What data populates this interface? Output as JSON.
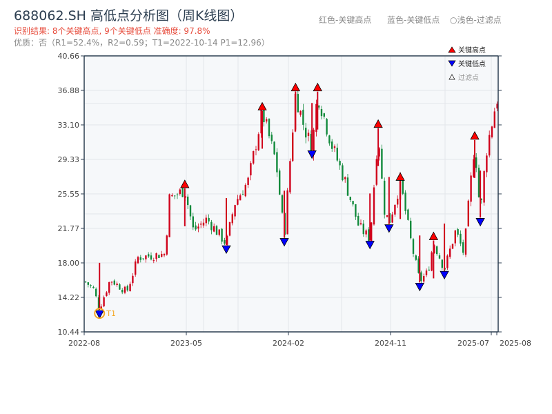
{
  "header": {
    "title": "688062.SH 高低点分析图（周K线图）",
    "result": "识别结果: 8个关键高点, 9个关键低点  准确度: 97.8%",
    "quality": "优质：否（R1=52.4%，R2=0.59；T1=2022-10-14 P1=12.96）",
    "legend_top": [
      "红色-关键高点",
      "蓝色-关键低点",
      "○浅色-过滤点"
    ]
  },
  "chart_data": {
    "type": "candlestick",
    "title": "688062.SH 高低点分析图（周K线图）",
    "interval": "weekly",
    "ylim": [
      10.44,
      40.66
    ],
    "y_ticks": [
      "40.66",
      "36.88",
      "33.10",
      "29.33",
      "25.55",
      "21.77",
      "18.00",
      "14.22",
      "10.44"
    ],
    "x_ticks": [
      "2022-08",
      "2023-05",
      "2024-02",
      "2024-11",
      "2025-07",
      "2025-08"
    ],
    "grid": true,
    "legend_position": "top-right",
    "legend": [
      "关键高点",
      "关键低点",
      "过滤点"
    ],
    "colors": {
      "up": "#d0021b",
      "down": "#128a3c",
      "high_marker": "#ff0000",
      "low_marker": "#0000ff",
      "t1": "#f5a623",
      "plot_bg": "#f6f8fa"
    },
    "price_path": [
      [
        "2022-08-01",
        16.0
      ],
      [
        "2022-08-25",
        15.2
      ],
      [
        "2022-09-11",
        13.0,
        "low"
      ],
      [
        "2022-10-10",
        16.2
      ],
      [
        "2022-11-23",
        14.8
      ],
      [
        "2022-12-23",
        18.6
      ],
      [
        "2023-03-07",
        19.0
      ],
      [
        "2023-03-14",
        25.0
      ],
      [
        "2023-04-27",
        26.0,
        "high"
      ],
      [
        "2023-05-20",
        21.5
      ],
      [
        "2023-06-25",
        22.8
      ],
      [
        "2023-08-16",
        20.1,
        "low"
      ],
      [
        "2023-09-07",
        24.5
      ],
      [
        "2023-10-14",
        27.0
      ],
      [
        "2023-11-20",
        34.5,
        "high"
      ],
      [
        "2023-12-27",
        29.0
      ],
      [
        "2024-01-18",
        20.9,
        "low"
      ],
      [
        "2024-02-02",
        29.0
      ],
      [
        "2024-02-17",
        36.6,
        "high"
      ],
      [
        "2024-03-10",
        33.0
      ],
      [
        "2024-04-01",
        30.5,
        "low"
      ],
      [
        "2024-04-16",
        36.6,
        "high"
      ],
      [
        "2024-05-23",
        31.0
      ],
      [
        "2024-06-28",
        27.0
      ],
      [
        "2024-08-04",
        22.0
      ],
      [
        "2024-09-03",
        20.6,
        "low"
      ],
      [
        "2024-09-25",
        32.6,
        "high"
      ],
      [
        "2024-10-10",
        24.0
      ],
      [
        "2024-10-24",
        22.4,
        "low"
      ],
      [
        "2024-11-23",
        26.8,
        "high"
      ],
      [
        "2024-12-23",
        20.0
      ],
      [
        "2025-01-14",
        16.0,
        "low"
      ],
      [
        "2025-02-05",
        17.0
      ],
      [
        "2025-02-20",
        20.3,
        "high"
      ],
      [
        "2025-03-21",
        17.3,
        "low"
      ],
      [
        "2025-04-20",
        21.5
      ],
      [
        "2025-05-12",
        19.0
      ],
      [
        "2025-06-10",
        31.3,
        "high"
      ],
      [
        "2025-06-25",
        23.1,
        "low"
      ],
      [
        "2025-07-10",
        30.0
      ],
      [
        "2025-08-08",
        36.0
      ]
    ],
    "annotation": "T1"
  }
}
